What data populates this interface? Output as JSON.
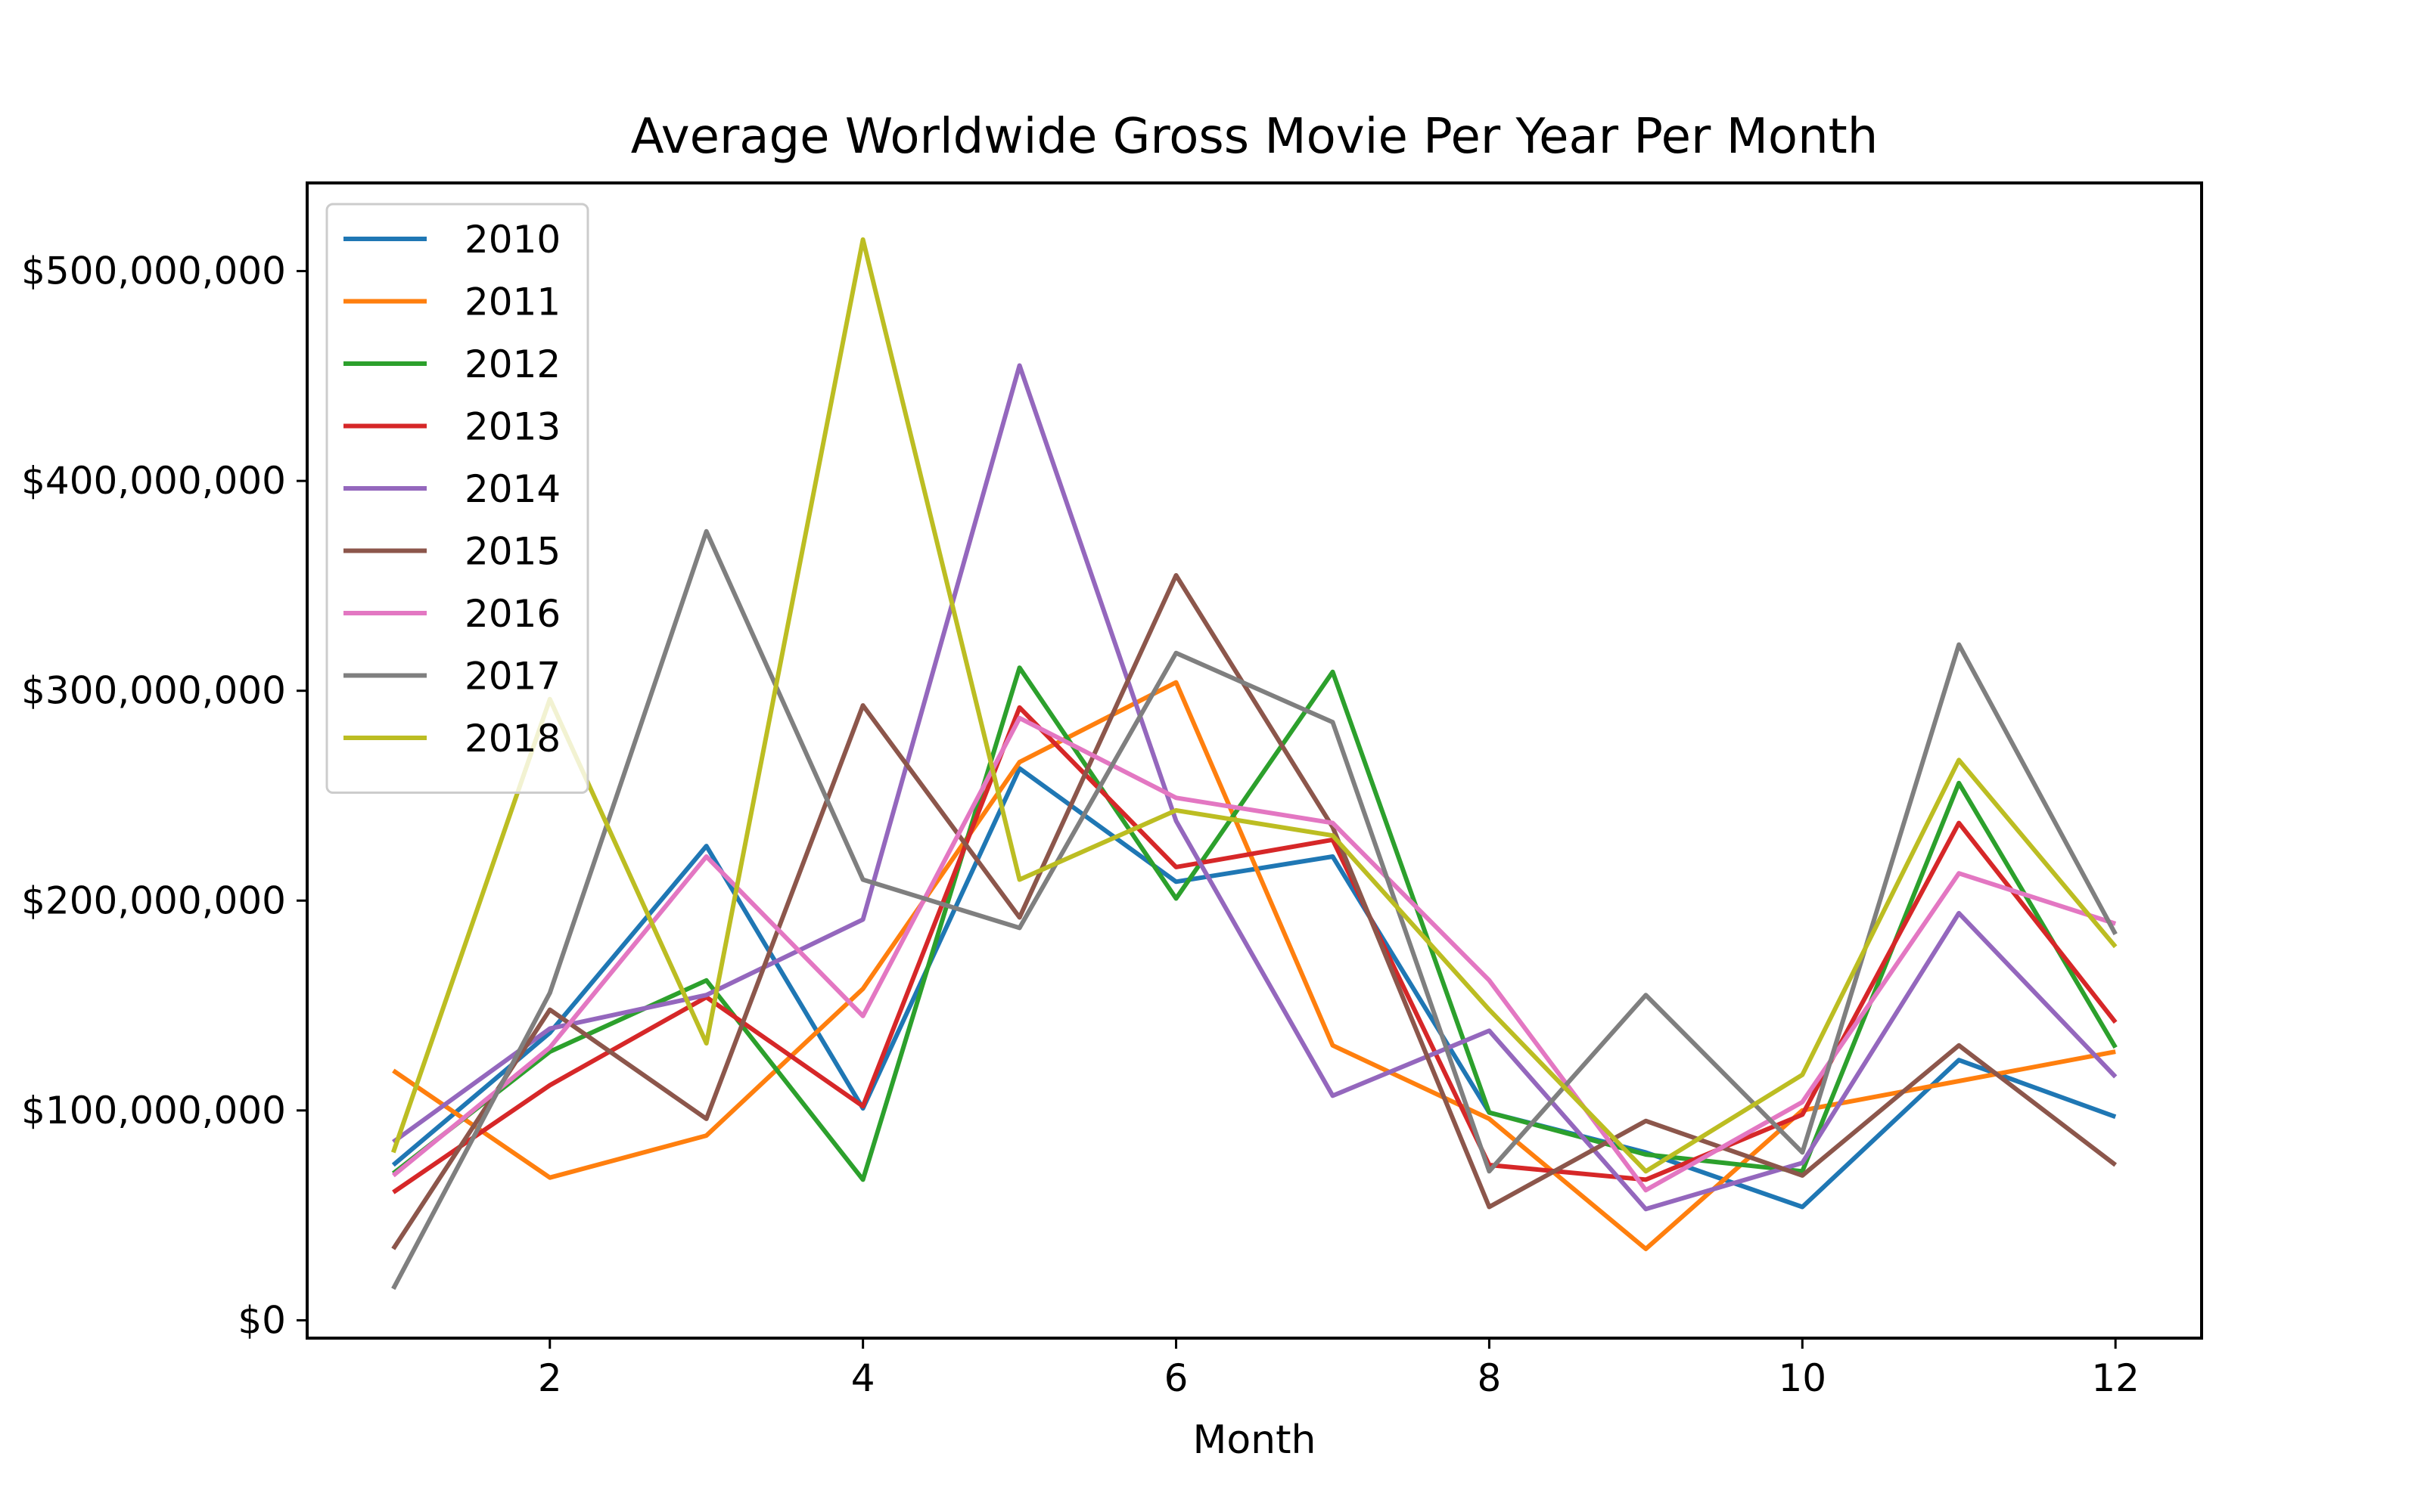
{
  "chart_data": {
    "type": "line",
    "title": "Average Worldwide Gross Movie Per Year Per Month",
    "xlabel": "Month",
    "ylabel": "",
    "x": [
      1,
      2,
      3,
      4,
      5,
      6,
      7,
      8,
      9,
      10,
      11,
      12
    ],
    "xlim": [
      0.45,
      12.55
    ],
    "ylim": [
      -8500000,
      542000000
    ],
    "xticks": [
      2,
      4,
      6,
      8,
      10,
      12
    ],
    "xtick_labels": [
      "2",
      "4",
      "6",
      "8",
      "10",
      "12"
    ],
    "yticks": [
      0,
      100000000,
      200000000,
      300000000,
      400000000,
      500000000
    ],
    "ytick_labels": [
      "$0",
      "$100,000,000",
      "$200,000,000",
      "$300,000,000",
      "$400,000,000",
      "$500,000,000"
    ],
    "grid": false,
    "legend_position": "top-left",
    "series": [
      {
        "name": "2010",
        "color": "#1f77b4",
        "values": [
          74000000,
          137000000,
          226000000,
          101000000,
          263000000,
          209000000,
          221000000,
          99000000,
          80000000,
          54000000,
          124000000,
          97000000
        ]
      },
      {
        "name": "2011",
        "color": "#ff7f0e",
        "values": [
          119000000,
          68000000,
          88000000,
          158000000,
          266000000,
          304000000,
          131000000,
          96000000,
          34000000,
          100000000,
          114000000,
          128000000
        ]
      },
      {
        "name": "2012",
        "color": "#2ca02c",
        "values": [
          70000000,
          128000000,
          162000000,
          67000000,
          311000000,
          201000000,
          309000000,
          99000000,
          79000000,
          71000000,
          256000000,
          130000000
        ]
      },
      {
        "name": "2013",
        "color": "#d62728",
        "values": [
          61000000,
          112000000,
          154000000,
          102000000,
          292000000,
          216000000,
          229000000,
          74000000,
          67000000,
          98000000,
          237000000,
          142000000
        ]
      },
      {
        "name": "2014",
        "color": "#9467bd",
        "values": [
          85000000,
          139000000,
          155000000,
          191000000,
          455000000,
          238000000,
          107000000,
          138000000,
          53000000,
          75000000,
          194000000,
          116000000
        ]
      },
      {
        "name": "2015",
        "color": "#8c564b",
        "values": [
          34000000,
          148000000,
          96000000,
          293000000,
          192000000,
          355000000,
          235000000,
          54000000,
          95000000,
          69000000,
          131000000,
          74000000
        ]
      },
      {
        "name": "2016",
        "color": "#e377c2",
        "values": [
          69000000,
          130000000,
          221000000,
          145000000,
          287000000,
          249000000,
          237000000,
          162000000,
          62000000,
          104000000,
          213000000,
          189000000
        ]
      },
      {
        "name": "2017",
        "color": "#7f7f7f",
        "values": [
          15000000,
          156000000,
          376000000,
          210000000,
          187000000,
          318000000,
          285000000,
          71000000,
          155000000,
          80000000,
          322000000,
          184000000
        ]
      },
      {
        "name": "2018",
        "color": "#bcbd22",
        "values": [
          80000000,
          296000000,
          132000000,
          515000000,
          210000000,
          243000000,
          231000000,
          148000000,
          71000000,
          117000000,
          267000000,
          178000000
        ]
      }
    ]
  }
}
